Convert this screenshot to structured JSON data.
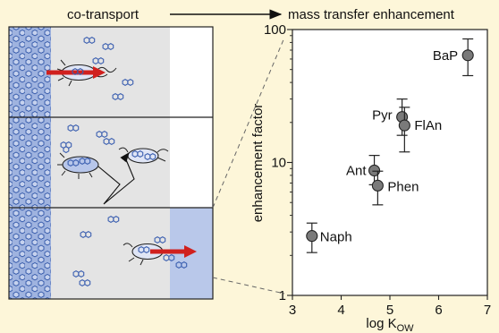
{
  "header": {
    "left_label": "co-transport",
    "right_label": "mass transfer enhancement"
  },
  "colors": {
    "background": "#fdf6d9",
    "panel_gray": "#e4e4e4",
    "sediment_blue": "#9fb3df",
    "accent_blue": "#b9c8ea",
    "arrow_red": "#d0201e",
    "marker_fill": "#7a7a7a"
  },
  "chart_data": {
    "type": "scatter",
    "xlabel_main": "log K",
    "xlabel_sub": "OW",
    "ylabel": "enhancement factor",
    "x_ticks": [
      3,
      4,
      5,
      6,
      7
    ],
    "y_ticks": [
      1,
      10,
      100
    ],
    "y_tick_labels": [
      "1",
      "10",
      "100"
    ],
    "xlim": [
      3,
      7
    ],
    "ylim": [
      1,
      100
    ],
    "y_scale": "log",
    "grid": false,
    "points": [
      {
        "label": "Naph",
        "x": 3.4,
        "y": 2.8,
        "y_low": 2.1,
        "y_high": 3.5
      },
      {
        "label": "Ant",
        "x": 4.68,
        "y": 8.7,
        "y_low": 6.8,
        "y_high": 11.3
      },
      {
        "label": "Phen",
        "x": 4.75,
        "y": 6.7,
        "y_low": 4.8,
        "y_high": 8.6
      },
      {
        "label": "Pyr",
        "x": 5.25,
        "y": 22,
        "y_low": 16,
        "y_high": 30
      },
      {
        "label": "FlAn",
        "x": 5.3,
        "y": 19,
        "y_low": 12,
        "y_high": 26
      },
      {
        "label": "BaP",
        "x": 6.6,
        "y": 64,
        "y_low": 45,
        "y_high": 85
      }
    ]
  }
}
